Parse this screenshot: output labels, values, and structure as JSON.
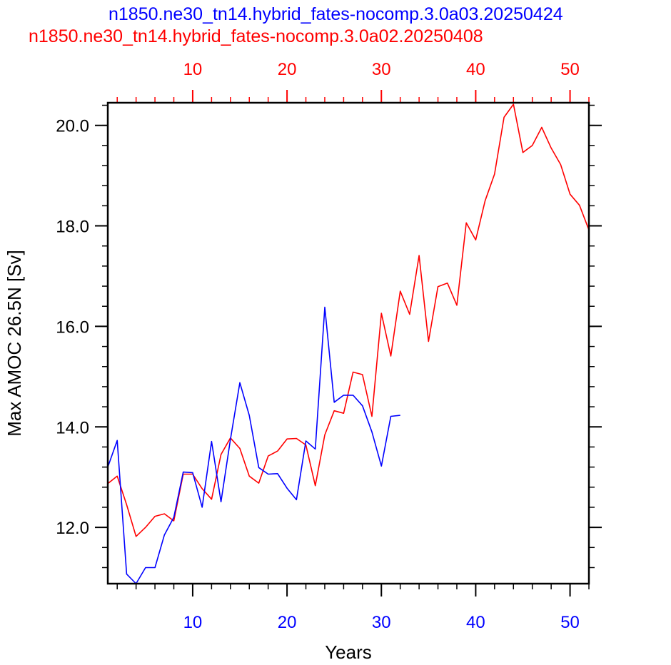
{
  "titles": {
    "blue": "n1850.ne30_tn14.hybrid_fates-nocomp.3.0a03.20250424",
    "red": "n1850.ne30_tn14.hybrid_fates-nocomp.3.0a02.20250408"
  },
  "colors": {
    "blue": "#0000ff",
    "red": "#ff0000",
    "axis": "#000000"
  },
  "chart_data": {
    "type": "line",
    "xlabel": "Years",
    "ylabel": "Max AMOC 26.5N [Sv]",
    "xlim": [
      1,
      52
    ],
    "ylim": [
      10.88,
      20.45
    ],
    "y_ticks": [
      12.0,
      14.0,
      16.0,
      18.0,
      20.0
    ],
    "y_tick_labels": [
      "12.0",
      "14.0",
      "16.0",
      "18.0",
      "20.0"
    ],
    "x_ticks_bottom": [
      10,
      20,
      30,
      40,
      50
    ],
    "x_tick_labels_bottom": [
      "10",
      "20",
      "30",
      "40",
      "50"
    ],
    "x_ticks_top": [
      10,
      20,
      30,
      40,
      50
    ],
    "x_tick_labels_top": [
      "10",
      "20",
      "30",
      "40",
      "50"
    ],
    "grid": false,
    "series": [
      {
        "name": "n1850.ne30_tn14.hybrid_fates-nocomp.3.0a02.20250408",
        "color": "#ff0000",
        "axis": "top",
        "x": [
          1,
          2,
          3,
          4,
          5,
          6,
          7,
          8,
          9,
          10,
          11,
          12,
          13,
          14,
          15,
          16,
          17,
          18,
          19,
          20,
          21,
          22,
          23,
          24,
          25,
          26,
          27,
          28,
          29,
          30,
          31,
          32,
          33,
          34,
          35,
          36,
          37,
          38,
          39,
          40,
          41,
          42,
          43,
          44,
          45,
          46,
          47,
          48,
          49,
          50,
          51,
          52
        ],
        "values": [
          12.87,
          13.02,
          12.45,
          11.82,
          12.0,
          12.22,
          12.27,
          12.13,
          13.06,
          13.06,
          12.77,
          12.56,
          13.45,
          13.78,
          13.57,
          13.02,
          12.88,
          13.42,
          13.52,
          13.76,
          13.77,
          13.64,
          12.83,
          13.84,
          14.32,
          14.27,
          15.09,
          15.04,
          14.21,
          16.26,
          15.41,
          16.7,
          16.24,
          17.41,
          15.7,
          16.79,
          16.86,
          16.42,
          18.06,
          17.72,
          18.5,
          19.03,
          20.16,
          20.42,
          19.46,
          19.6,
          19.96,
          19.55,
          19.22,
          18.63,
          18.41,
          17.92
        ]
      },
      {
        "name": "n1850.ne30_tn14.hybrid_fates-nocomp.3.0a03.20250424",
        "color": "#0000ff",
        "axis": "bottom",
        "x": [
          1,
          2,
          3,
          4,
          5,
          6,
          7,
          8,
          9,
          10,
          11,
          12,
          13,
          14,
          15,
          16,
          17,
          18,
          19,
          20,
          21,
          22,
          23,
          24,
          25,
          26,
          27,
          28,
          29,
          30,
          31,
          32
        ],
        "values": [
          13.2,
          13.73,
          11.07,
          10.88,
          11.2,
          11.2,
          11.85,
          12.2,
          13.1,
          13.09,
          12.4,
          13.71,
          12.51,
          13.75,
          14.88,
          14.23,
          13.19,
          13.06,
          13.07,
          12.78,
          12.55,
          13.72,
          13.56,
          16.38,
          14.49,
          14.63,
          14.63,
          14.42,
          13.9,
          13.22,
          14.21,
          14.23
        ]
      }
    ]
  }
}
